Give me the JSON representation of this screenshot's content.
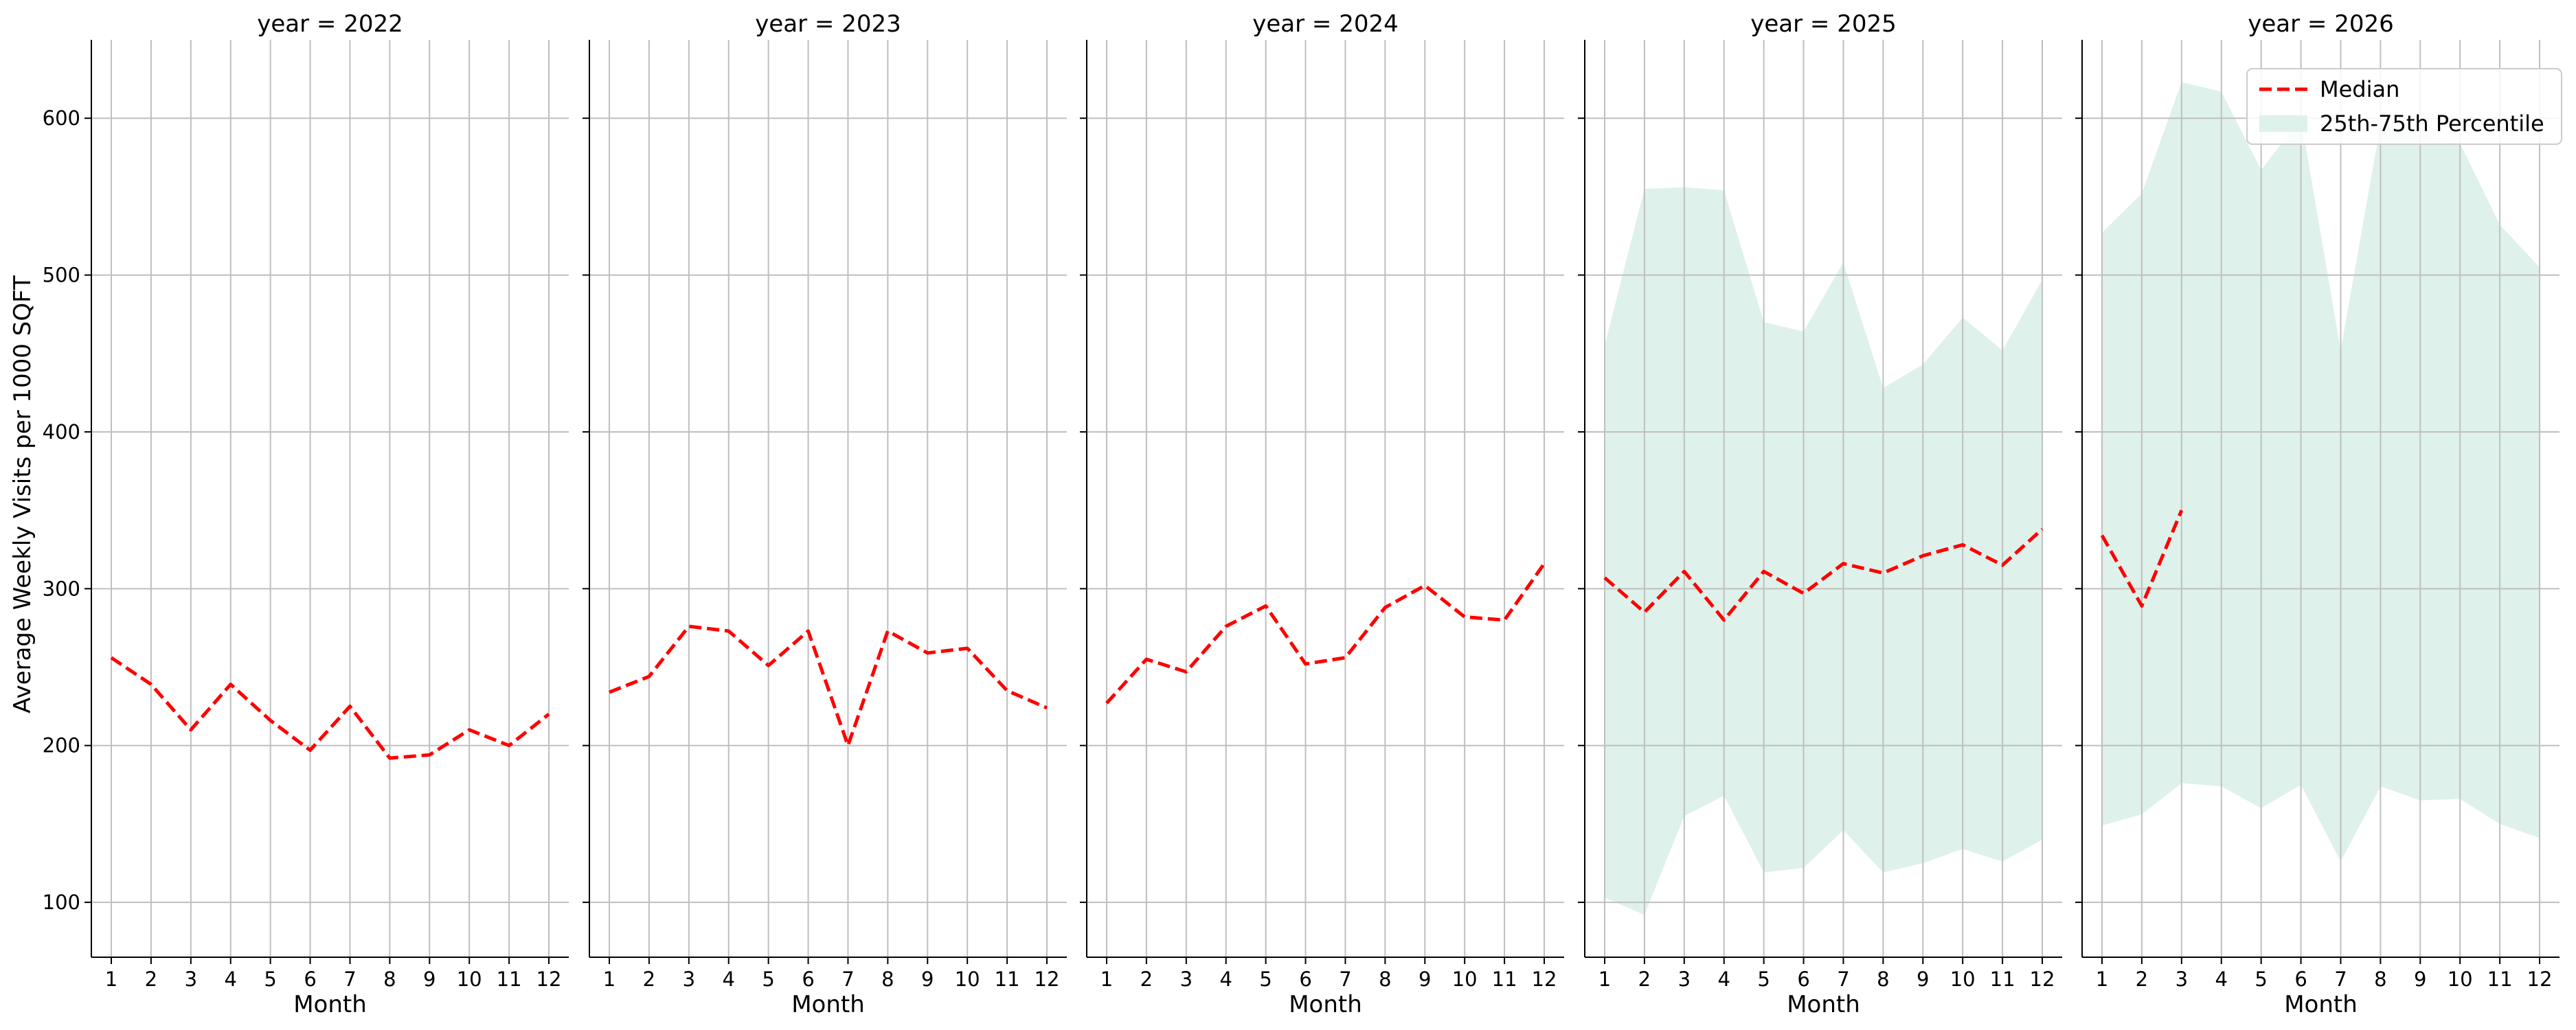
{
  "chart_data": {
    "type": "line",
    "ylabel": "Average Weekly Visits per 1000 SQFT",
    "xlabel": "Month",
    "ylim": [
      65,
      650
    ],
    "yticks": [
      100,
      200,
      300,
      400,
      500,
      600
    ],
    "xticks": [
      1,
      2,
      3,
      4,
      5,
      6,
      7,
      8,
      9,
      10,
      11,
      12
    ],
    "grid": true,
    "legend": {
      "placement": "top-right",
      "entries": [
        "Median",
        "25th-75th Percentile"
      ]
    },
    "colors": {
      "median": "#ff0000",
      "band": "#dff1eb",
      "grid": "#bfbfbf"
    },
    "panels": [
      {
        "title": "year = 2022",
        "median": {
          "x": [
            1,
            2,
            3,
            4,
            5,
            6,
            7,
            8,
            9,
            10,
            11,
            12
          ],
          "y": [
            256,
            239,
            210,
            239,
            216,
            197,
            225,
            192,
            194,
            210,
            200,
            220
          ]
        }
      },
      {
        "title": "year = 2023",
        "median": {
          "x": [
            1,
            2,
            3,
            4,
            5,
            6,
            7,
            8,
            9,
            10,
            11,
            12
          ],
          "y": [
            234,
            244,
            276,
            273,
            251,
            273,
            200,
            273,
            259,
            262,
            235,
            224
          ]
        }
      },
      {
        "title": "year = 2024",
        "median": {
          "x": [
            1,
            2,
            3,
            4,
            5,
            6,
            7,
            8,
            9,
            10,
            11,
            12
          ],
          "y": [
            227,
            255,
            247,
            276,
            289,
            252,
            256,
            288,
            302,
            282,
            280,
            316
          ]
        }
      },
      {
        "title": "year = 2025",
        "median": {
          "x": [
            1,
            2,
            3,
            4,
            5,
            6,
            7,
            8,
            9,
            10,
            11,
            12
          ],
          "y": [
            307,
            285,
            311,
            280,
            311,
            297,
            316,
            310,
            321,
            328,
            315,
            338
          ]
        },
        "band": {
          "x": [
            1,
            2,
            3,
            4,
            5,
            6,
            7,
            8,
            9,
            10,
            11,
            12
          ],
          "low": [
            103,
            92,
            155,
            168,
            119,
            122,
            146,
            119,
            125,
            134,
            126,
            140
          ],
          "high": [
            455,
            555,
            556,
            554,
            470,
            464,
            508,
            428,
            443,
            473,
            452,
            497
          ]
        }
      },
      {
        "title": "year = 2026",
        "median": {
          "x": [
            1,
            2,
            3
          ],
          "y": [
            334,
            289,
            350
          ]
        },
        "band": {
          "x": [
            1,
            2,
            3,
            4,
            5,
            6,
            7,
            8,
            9,
            10,
            11,
            12
          ],
          "low": [
            149,
            156,
            176,
            174,
            160,
            175,
            126,
            174,
            165,
            166,
            150,
            141
          ],
          "high": [
            527,
            552,
            623,
            617,
            567,
            600,
            452,
            596,
            590,
            584,
            532,
            505
          ]
        }
      }
    ]
  }
}
